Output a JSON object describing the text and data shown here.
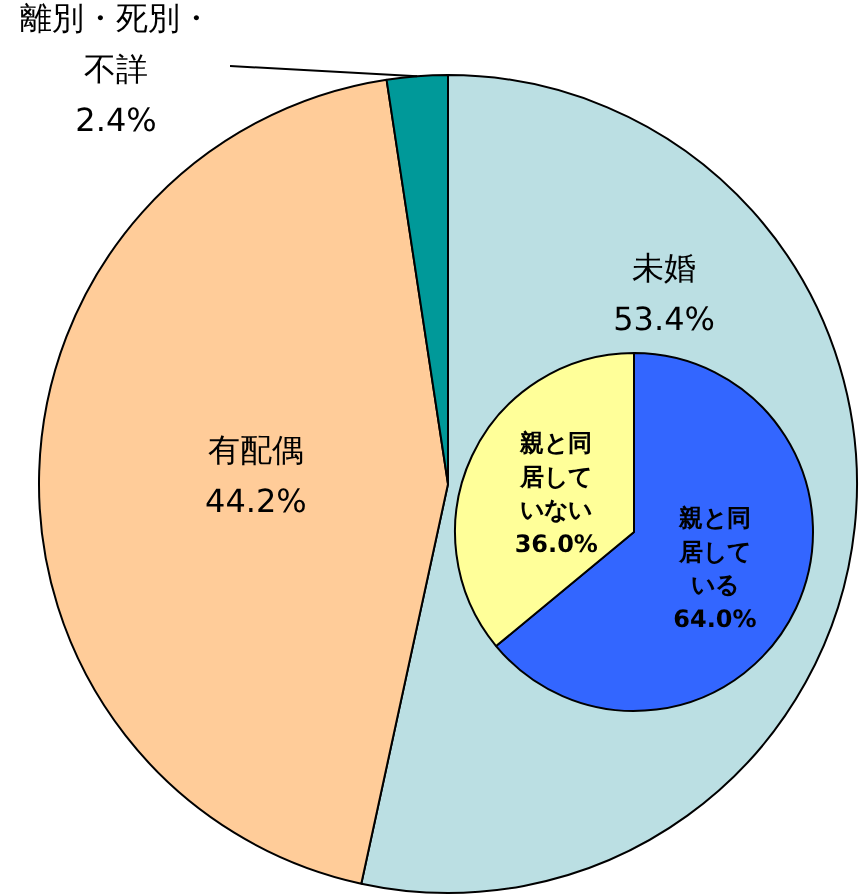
{
  "chart_data": [
    {
      "type": "pie",
      "categories": [
        "未婚",
        "有配偶",
        "離別・死別・不詳"
      ],
      "values": [
        53.4,
        44.2,
        2.4
      ],
      "colors": [
        "#bbdfe3",
        "#ffcc99",
        "#009999"
      ],
      "value_labels": [
        "53.4%",
        "44.2%",
        "2.4%"
      ]
    },
    {
      "type": "pie",
      "categories": [
        "親と同居している",
        "親と同居していない"
      ],
      "values": [
        64.0,
        36.0
      ],
      "colors": [
        "#3366ff",
        "#ffff99"
      ],
      "value_labels": [
        "64.0%",
        "36.0%"
      ]
    }
  ]
}
